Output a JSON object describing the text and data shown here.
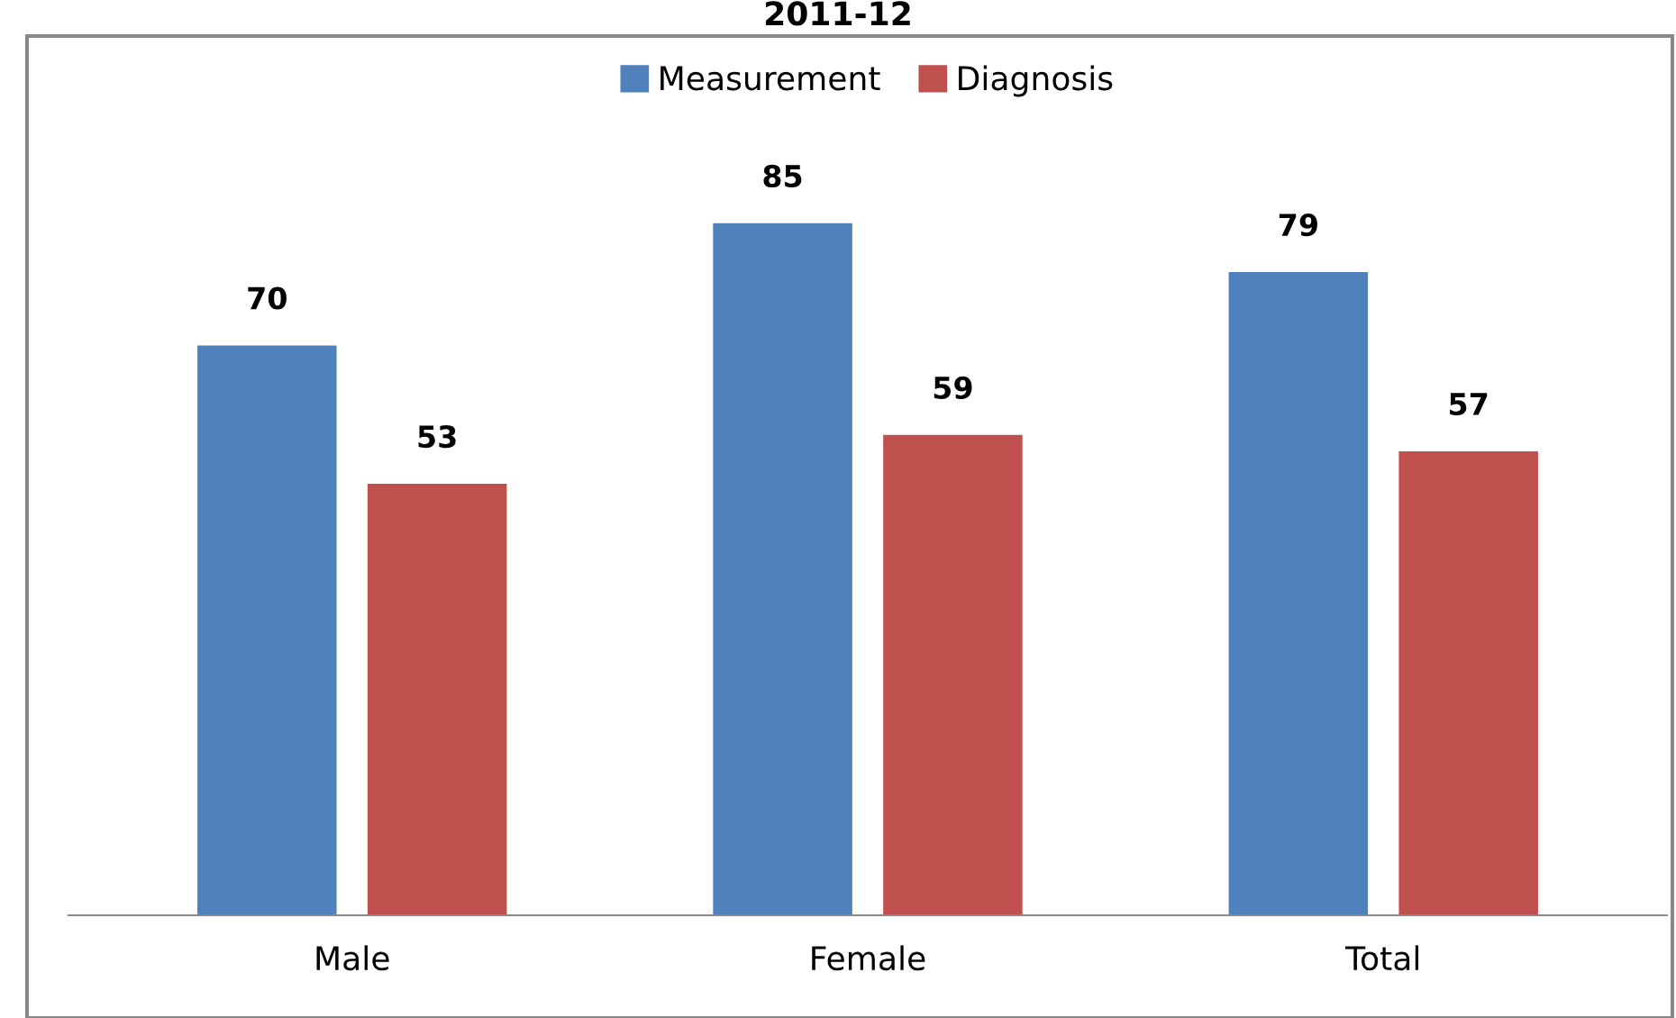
{
  "chart_data": {
    "type": "bar",
    "title": "2011-12",
    "categories": [
      "Male",
      "Female",
      "Total"
    ],
    "series": [
      {
        "name": "Measurement",
        "color": "#4f81bd",
        "values": [
          70,
          85,
          79
        ]
      },
      {
        "name": "Diagnosis",
        "color": "#c0504d",
        "values": [
          53,
          59,
          57
        ]
      }
    ],
    "ylim": [
      0,
      108
    ],
    "data_labels": true,
    "legend": "top",
    "tick_labels": "x",
    "grid": false
  }
}
